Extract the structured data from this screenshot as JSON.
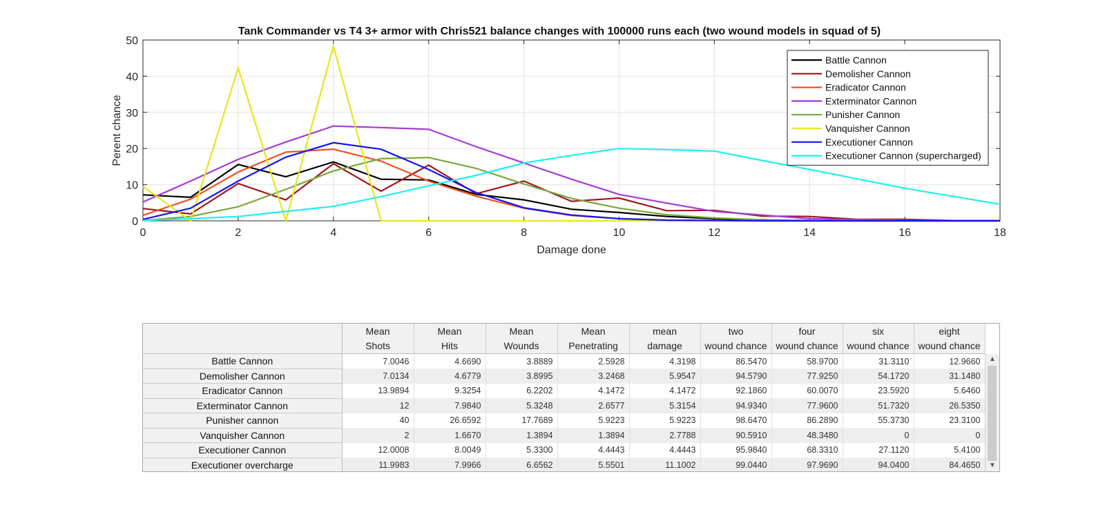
{
  "chart_data": {
    "type": "line",
    "title": "Tank Commander vs T4 3+ armor with Chris521 balance changes with 100000 runs each (two wound models in squad of 5)",
    "xlabel": "Damage done",
    "ylabel": "Perent chance",
    "xlim": [
      0,
      18
    ],
    "ylim": [
      0,
      50
    ],
    "xticks": [
      "0",
      "2",
      "4",
      "6",
      "8",
      "10",
      "12",
      "14",
      "16",
      "18"
    ],
    "yticks": [
      "0",
      "10",
      "20",
      "30",
      "40",
      "50"
    ],
    "grid": true,
    "legend_position": "top-right",
    "x": [
      0,
      1,
      2,
      3,
      4,
      5,
      6,
      7,
      8,
      9,
      10,
      11,
      12,
      13,
      14,
      15,
      16,
      17,
      18
    ],
    "series": [
      {
        "name": "Battle Cannon",
        "color": "#000000",
        "values": [
          7.2,
          6.5,
          15.6,
          12.2,
          16.3,
          11.5,
          11.3,
          7.3,
          5.8,
          3.2,
          2.3,
          1.2,
          0.6,
          0.3,
          0.1,
          0,
          0,
          0,
          0
        ]
      },
      {
        "name": "Demolisher Cannon",
        "color": "#a0141e",
        "values": [
          3.4,
          1.9,
          10.3,
          5.8,
          15.8,
          8.2,
          15.4,
          7.5,
          11.0,
          5.4,
          6.3,
          2.8,
          2.9,
          1.3,
          1.2,
          0.4,
          0.4,
          0.1,
          0.1
        ]
      },
      {
        "name": "Eradicator Cannon",
        "color": "#f0501e",
        "values": [
          1.5,
          6.0,
          13.5,
          19.0,
          19.8,
          16.5,
          11.0,
          6.8,
          3.5,
          1.5,
          0.6,
          0.2,
          0.1,
          0,
          0,
          0,
          0,
          0,
          0
        ]
      },
      {
        "name": "Exterminator Cannon",
        "color": "#a43ad6",
        "values": [
          5.2,
          11.0,
          17.0,
          21.8,
          26.2,
          25.8,
          25.3,
          20.5,
          16.0,
          11.5,
          7.3,
          4.9,
          2.6,
          1.6,
          0.6,
          0.3,
          0.1,
          0,
          0
        ]
      },
      {
        "name": "Punisher Cannon",
        "color": "#78a83a",
        "values": [
          0.1,
          1.2,
          3.9,
          8.7,
          13.8,
          17.2,
          17.5,
          14.5,
          10.2,
          6.2,
          3.5,
          1.7,
          0.8,
          0.3,
          0.1,
          0,
          0,
          0,
          0
        ]
      },
      {
        "name": "Vanquisher Cannon",
        "color": "#e6e61e",
        "values": [
          9.5,
          0,
          42.3,
          0,
          48.3,
          0,
          0,
          0,
          0,
          0,
          0,
          0,
          0,
          0,
          0,
          0,
          0,
          0,
          0
        ]
      },
      {
        "name": "Executioner Cannon",
        "color": "#1414f0",
        "values": [
          0.4,
          3.5,
          11.0,
          17.6,
          21.6,
          19.8,
          14.2,
          7.8,
          3.6,
          1.6,
          0.6,
          0.2,
          0.1,
          0,
          0,
          0,
          0,
          0,
          0
        ]
      },
      {
        "name": "Executioner Cannon (supercharged)",
        "color": "#1ef0f0",
        "values": [
          0.1,
          0.6,
          1.2,
          2.6,
          4.0,
          6.7,
          9.7,
          12.6,
          16.0,
          18.1,
          20.0,
          19.7,
          19.3,
          16.7,
          14.2,
          11.6,
          9.0,
          6.8,
          4.6
        ]
      }
    ]
  },
  "table": {
    "columns": [
      {
        "line1": "Mean",
        "line2": "Shots"
      },
      {
        "line1": "Mean",
        "line2": "Hits"
      },
      {
        "line1": "Mean",
        "line2": "Wounds"
      },
      {
        "line1": "Mean",
        "line2": "Penetrating"
      },
      {
        "line1": "mean",
        "line2": "damage"
      },
      {
        "line1": "two",
        "line2": "wound chance"
      },
      {
        "line1": "four",
        "line2": "wound chance"
      },
      {
        "line1": "six",
        "line2": "wound chance"
      },
      {
        "line1": "eight",
        "line2": "wound chance"
      }
    ],
    "rows": [
      {
        "label": "Battle Cannon",
        "cells": [
          "7.0046",
          "4.6690",
          "3.8889",
          "2.5928",
          "4.3198",
          "86.5470",
          "58.9700",
          "31.3110",
          "12.9660"
        ]
      },
      {
        "label": "Demolisher Cannon",
        "cells": [
          "7.0134",
          "4.6779",
          "3.8995",
          "3.2468",
          "5.9547",
          "94.5790",
          "77.9250",
          "54.1720",
          "31.1480"
        ]
      },
      {
        "label": "Eradicator Cannon",
        "cells": [
          "13.9894",
          "9.3254",
          "6.2202",
          "4.1472",
          "4.1472",
          "92.1860",
          "60.0070",
          "23.5920",
          "5.6460"
        ]
      },
      {
        "label": "Exterminator Cannon",
        "cells": [
          "12",
          "7.9840",
          "5.3248",
          "2.6577",
          "5.3154",
          "94.9340",
          "77.9600",
          "51.7320",
          "26.5350"
        ]
      },
      {
        "label": "Punisher cannon",
        "cells": [
          "40",
          "26.6592",
          "17.7689",
          "5.9223",
          "5.9223",
          "98.6470",
          "86.2890",
          "55.3730",
          "23.3100"
        ]
      },
      {
        "label": "Vanquisher Cannon",
        "cells": [
          "2",
          "1.6670",
          "1.3894",
          "1.3894",
          "2.7788",
          "90.5910",
          "48.3480",
          "0",
          "0"
        ]
      },
      {
        "label": "Executioner Cannon",
        "cells": [
          "12.0008",
          "8.0049",
          "5.3300",
          "4.4443",
          "4.4443",
          "95.9840",
          "68.3310",
          "27.1120",
          "5.4100"
        ]
      },
      {
        "label": "Executioner overcharge",
        "cells": [
          "11.9983",
          "7.9966",
          "6.6562",
          "5.5501",
          "11.1002",
          "99.0440",
          "97.9690",
          "94.0400",
          "84.4650"
        ]
      }
    ]
  }
}
